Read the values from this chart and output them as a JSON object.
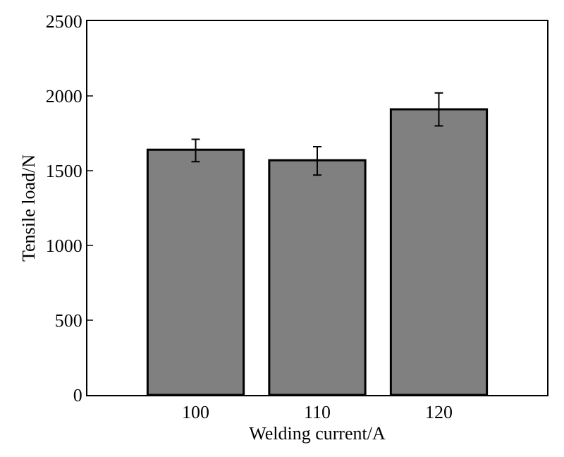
{
  "chart_data": {
    "type": "bar",
    "xlabel": "Welding current/A",
    "ylabel": "Tensile load/N",
    "categories": [
      "100",
      "110",
      "120"
    ],
    "series": [
      {
        "color": "#808080",
        "values": [
          1640,
          1570,
          1910
        ],
        "errors": [
          [
            1560,
            1710
          ],
          [
            1470,
            1660
          ],
          [
            1800,
            2020
          ]
        ]
      }
    ],
    "ylim": [
      0,
      2500
    ],
    "yticks": [
      0,
      500,
      1000,
      1500,
      2000,
      2500
    ]
  }
}
